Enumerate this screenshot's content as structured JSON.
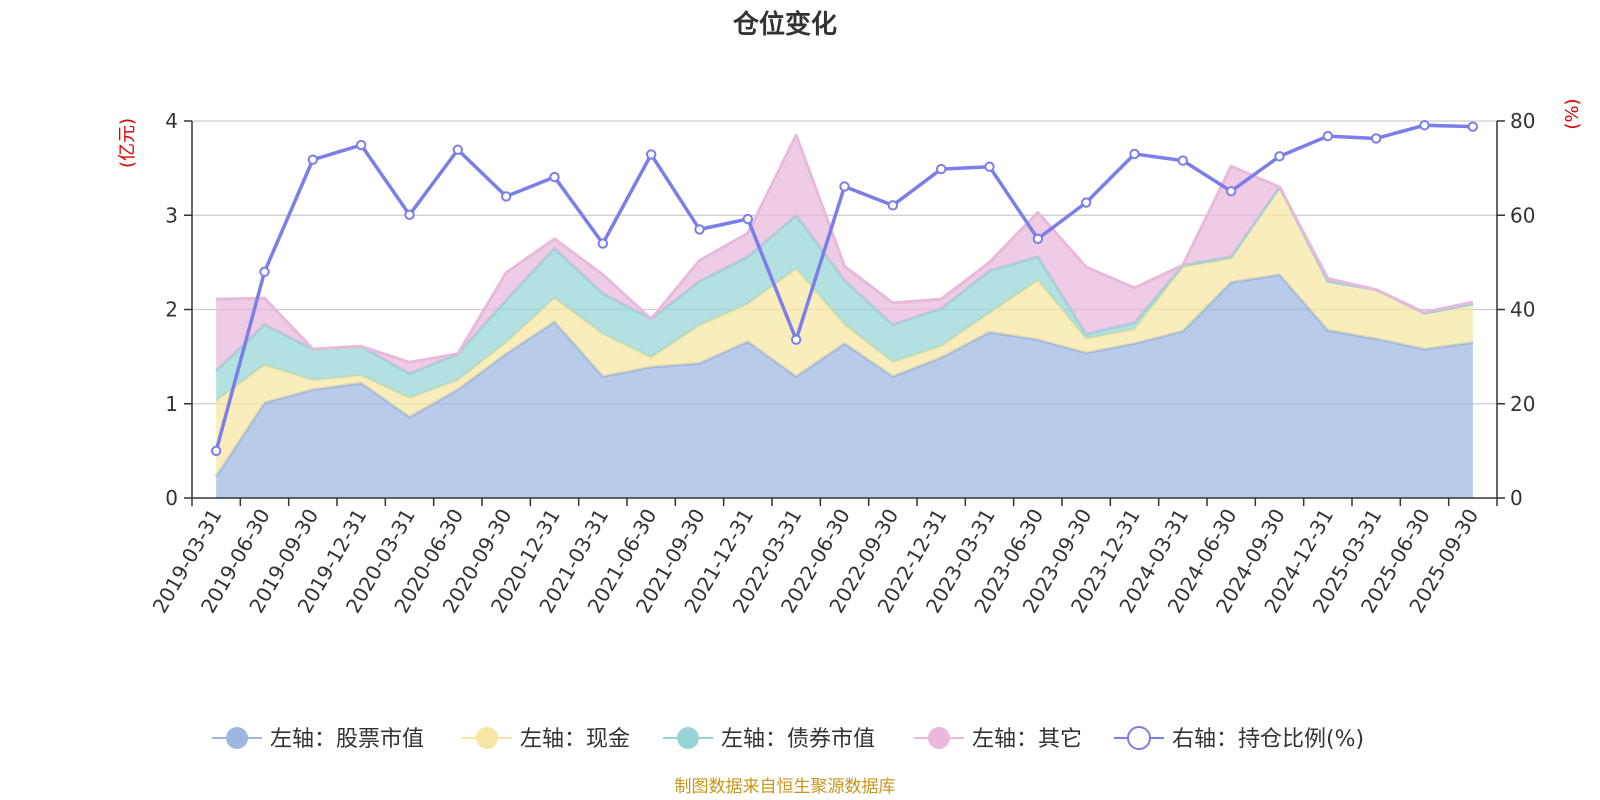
{
  "chart_data": {
    "type": "area",
    "title": "仓位变化",
    "ylabel_left": "(亿元)",
    "ylabel_right": "(%)",
    "ylim_left": [
      0,
      4
    ],
    "ylim_right": [
      0,
      80
    ],
    "y_ticks_left": [
      0,
      1,
      2,
      3,
      4
    ],
    "y_ticks_right": [
      0,
      20,
      40,
      60,
      80
    ],
    "grid": true,
    "legend_position": "bottom",
    "categories": [
      "2019-03-31",
      "2019-06-30",
      "2019-09-30",
      "2019-12-31",
      "2020-03-31",
      "2020-06-30",
      "2020-09-30",
      "2020-12-31",
      "2021-03-31",
      "2021-06-30",
      "2021-09-30",
      "2021-12-31",
      "2022-03-31",
      "2022-06-30",
      "2022-09-30",
      "2022-12-31",
      "2023-03-31",
      "2023-06-30",
      "2023-09-30",
      "2023-12-31",
      "2024-03-31",
      "2024-06-30",
      "2024-09-30",
      "2024-12-31",
      "2025-03-31",
      "2025-06-30",
      "2025-09-30"
    ],
    "series": [
      {
        "name": "左轴：股票市值",
        "axis": "left",
        "kind": "stacked-area",
        "color": "#9db7e0",
        "values": [
          0.23,
          1.01,
          1.15,
          1.22,
          0.86,
          1.15,
          1.53,
          1.87,
          1.29,
          1.39,
          1.43,
          1.66,
          1.29,
          1.64,
          1.29,
          1.49,
          1.76,
          1.68,
          1.54,
          1.64,
          1.77,
          2.29,
          2.37,
          1.78,
          1.69,
          1.58,
          1.65
        ]
      },
      {
        "name": "左轴：现金",
        "axis": "left",
        "kind": "stacked-area",
        "color": "#f7e6a1",
        "values": [
          0.8,
          0.4,
          0.1,
          0.08,
          0.2,
          0.1,
          0.12,
          0.25,
          0.45,
          0.1,
          0.4,
          0.4,
          1.14,
          0.2,
          0.15,
          0.12,
          0.2,
          0.63,
          0.15,
          0.15,
          0.68,
          0.25,
          0.93,
          0.52,
          0.52,
          0.38,
          0.41
        ]
      },
      {
        "name": "左轴：债券市值",
        "axis": "left",
        "kind": "stacked-area",
        "color": "#96d4d6",
        "values": [
          0.32,
          0.43,
          0.33,
          0.31,
          0.26,
          0.28,
          0.45,
          0.53,
          0.43,
          0.41,
          0.47,
          0.5,
          0.57,
          0.47,
          0.4,
          0.4,
          0.45,
          0.25,
          0.05,
          0.07,
          0.02,
          0.02,
          0.0,
          0.0,
          0.0,
          0.0,
          0.0
        ]
      },
      {
        "name": "左轴：其它",
        "axis": "left",
        "kind": "stacked-area",
        "color": "#e9b9dc",
        "values": [
          0.76,
          0.28,
          0.0,
          0.0,
          0.12,
          0.0,
          0.29,
          0.1,
          0.2,
          0.0,
          0.22,
          0.25,
          0.85,
          0.15,
          0.23,
          0.1,
          0.09,
          0.47,
          0.71,
          0.37,
          0.0,
          0.96,
          0.0,
          0.03,
          0.0,
          0.01,
          0.02
        ]
      },
      {
        "name": "右轴：持仓比例(%)",
        "axis": "right",
        "kind": "line",
        "color": "#7b7ee8",
        "values": [
          10.0,
          48.0,
          71.8,
          74.9,
          60.1,
          73.9,
          64.0,
          68.1,
          54.0,
          72.9,
          57.0,
          59.2,
          33.6,
          66.1,
          62.1,
          69.8,
          70.3,
          55.0,
          62.7,
          73.0,
          71.6,
          65.1,
          72.5,
          76.8,
          76.3,
          79.1,
          78.8
        ]
      }
    ]
  },
  "footer": {
    "source_text": "制图数据来自恒生聚源数据库"
  },
  "colors": {
    "title": "#333333",
    "right_axis_label": "#e00000",
    "source": "#c8961a",
    "grid": "#cccccc",
    "axis": "#333333"
  }
}
